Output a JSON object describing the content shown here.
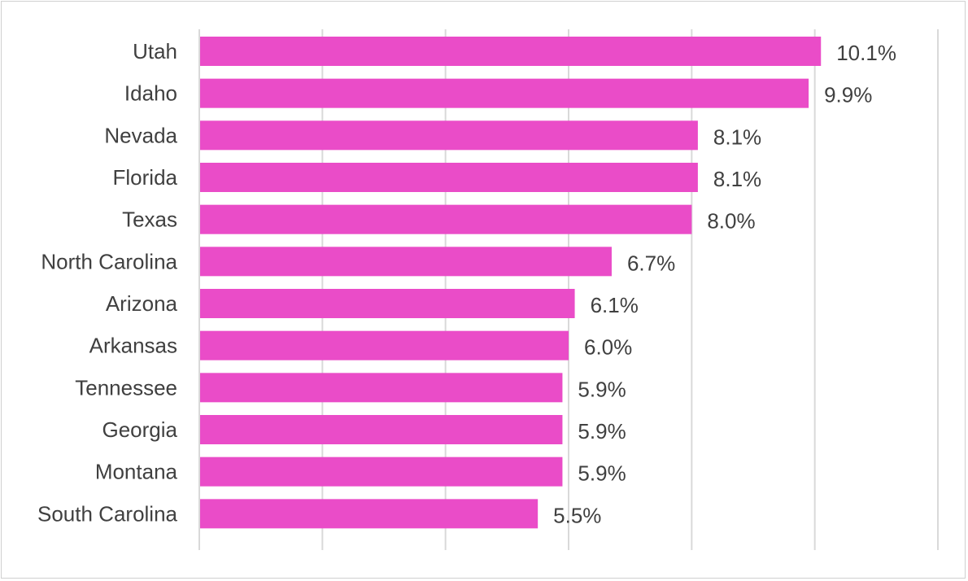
{
  "chart_data": {
    "type": "bar",
    "orientation": "horizontal",
    "categories": [
      "Utah",
      "Idaho",
      "Nevada",
      "Florida",
      "Texas",
      "North Carolina",
      "Arizona",
      "Arkansas",
      "Tennessee",
      "Georgia",
      "Montana",
      "South Carolina"
    ],
    "values": [
      10.1,
      9.9,
      8.1,
      8.1,
      8.0,
      6.7,
      6.1,
      6.0,
      5.9,
      5.9,
      5.9,
      5.5
    ],
    "value_labels": [
      "10.1%",
      "9.9%",
      "8.1%",
      "8.1%",
      "8.0%",
      "6.7%",
      "6.1%",
      "6.0%",
      "5.9%",
      "5.9%",
      "5.9%",
      "5.5%"
    ],
    "title": "",
    "xlabel": "",
    "ylabel": "",
    "xlim": [
      0,
      12
    ],
    "x_gridlines": [
      0,
      2,
      4,
      6,
      8,
      10,
      12
    ],
    "grid": true,
    "legend": "none",
    "bar_color": "#ea4cc8"
  }
}
